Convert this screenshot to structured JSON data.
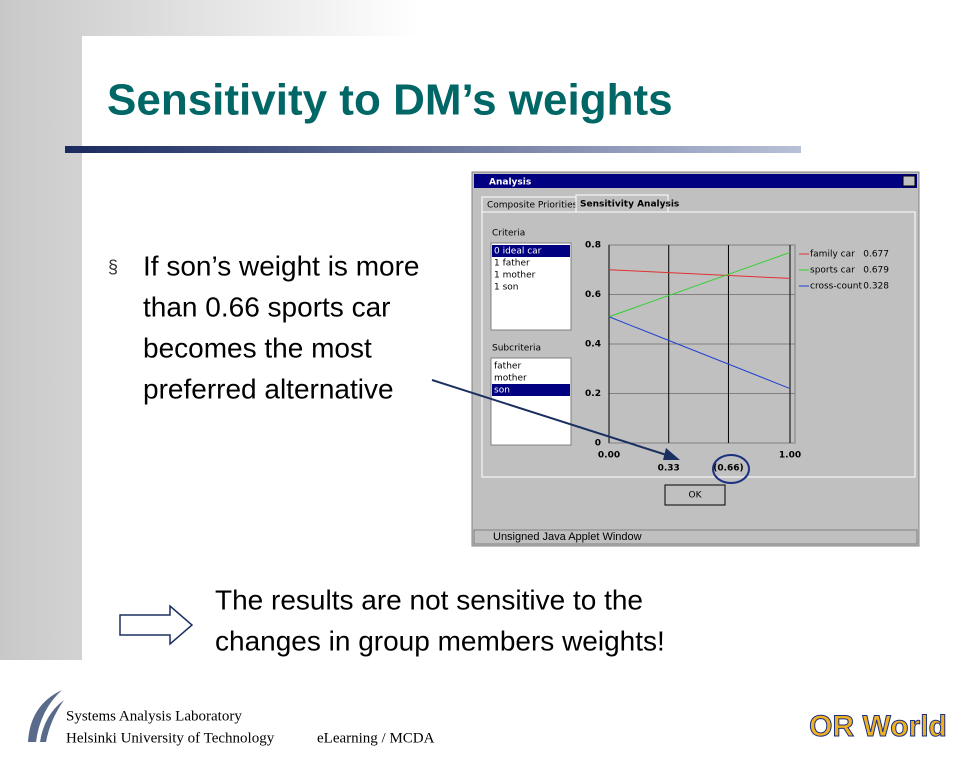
{
  "title": "Sensitivity to DM’s weights",
  "bullet": {
    "marker": "§",
    "lines": [
      "If son’s weight is more",
      "than 0.66 sports car",
      "becomes the most",
      "preferred alternative"
    ]
  },
  "applet": {
    "window_title": "Analysis",
    "tabs": [
      "Composite Priorities",
      "Sensitivity Analysis"
    ],
    "criteria_label": "Criteria",
    "criteria": [
      "0 ideal car",
      "1 father",
      "1 mother",
      "1 son"
    ],
    "subcriteria_label": "Subcriteria",
    "subcriteria": [
      "father",
      "mother",
      "son"
    ],
    "button": "OK",
    "status": "Unsigned Java Applet Window",
    "chart_data": {
      "type": "line",
      "x": [
        0,
        1
      ],
      "xlim": [
        0,
        1
      ],
      "ylim": [
        0,
        0.8
      ],
      "yticks": [
        0,
        0.2,
        0.4,
        0.6,
        0.8
      ],
      "xticks": [
        {
          "value": 0,
          "label": "0.00"
        },
        {
          "value": 0.33,
          "label": "0.33"
        },
        {
          "value": 0.66,
          "label": "(0.66)"
        },
        {
          "value": 1,
          "label": "1.00"
        }
      ],
      "grid": true,
      "series": [
        {
          "name": "family car",
          "color": "#e03030",
          "values": [
            0.7,
            0.665
          ],
          "legend_value": 0.677
        },
        {
          "name": "sports car",
          "color": "#30d030",
          "values": [
            0.51,
            0.77
          ],
          "legend_value": 0.679
        },
        {
          "name": "cross-count",
          "color": "#2040d0",
          "values": [
            0.51,
            0.22
          ],
          "legend_value": 0.328
        }
      ]
    }
  },
  "conclusion": [
    "The results are not sensitive to the",
    "changes in group members weights!"
  ],
  "footer": {
    "lab": "Systems Analysis Laboratory",
    "university": "Helsinki University of Technology",
    "course": "eLearning / MCDA",
    "logo": "OR World"
  }
}
